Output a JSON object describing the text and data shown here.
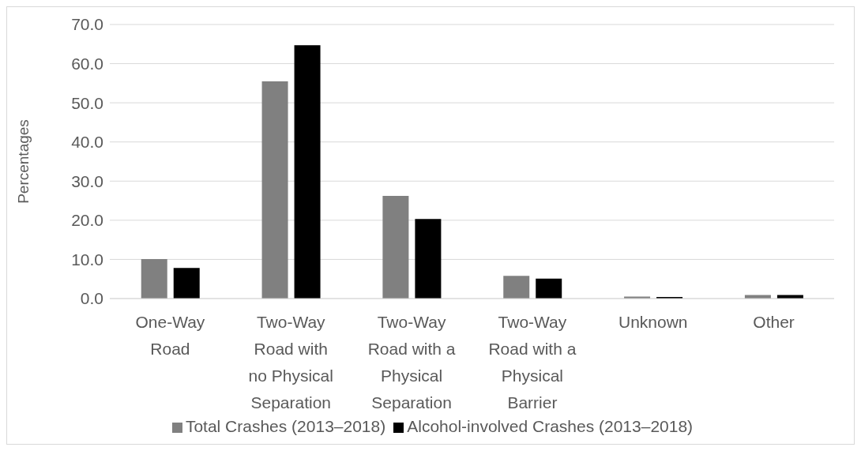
{
  "chart_data": {
    "type": "bar",
    "ylabel": "Percentages",
    "categories": [
      "One-Way Road",
      "Two-Way Road with no Physical Separation",
      "Two-Way Road with a Physical Separation",
      "Two-Way Road with a Physical Barrier",
      "Unknown",
      "Other"
    ],
    "series": [
      {
        "name": "Total Crashes (2013–2018)",
        "color": "#808080",
        "values": [
          10.1,
          55.5,
          26.2,
          5.8,
          0.5,
          0.9
        ]
      },
      {
        "name": "Alcohol-involved Crashes (2013–2018)",
        "color": "#000000",
        "values": [
          7.8,
          64.7,
          20.3,
          5.1,
          0.4,
          0.9
        ]
      }
    ],
    "ylim": [
      0,
      70
    ],
    "yticks": [
      {
        "value": 0,
        "label": "0.0"
      },
      {
        "value": 10,
        "label": "10.0"
      },
      {
        "value": 20,
        "label": "20.0"
      },
      {
        "value": 30,
        "label": "30.0"
      },
      {
        "value": 40,
        "label": "40.0"
      },
      {
        "value": 50,
        "label": "50.0"
      },
      {
        "value": 60,
        "label": "60.0"
      },
      {
        "value": 70,
        "label": "70.0"
      }
    ],
    "grid": "y",
    "legend": "bottom"
  }
}
